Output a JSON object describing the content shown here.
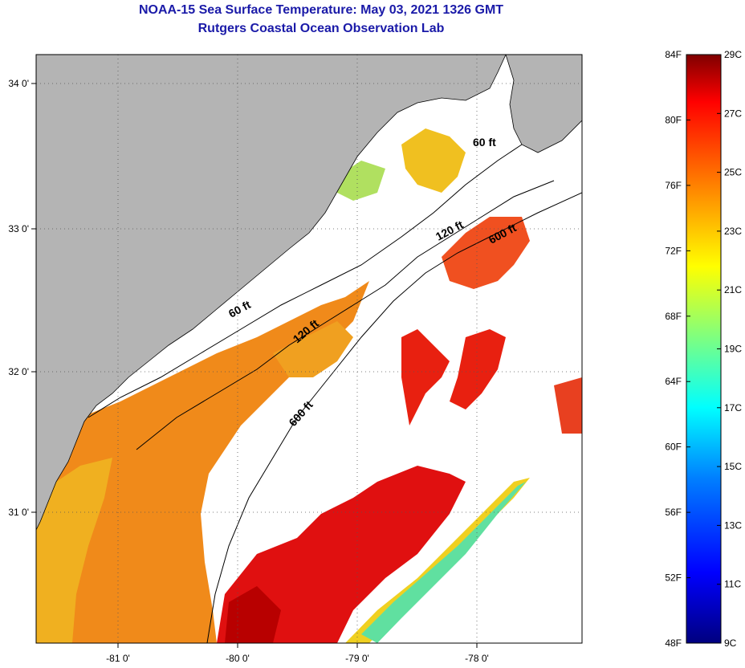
{
  "title": {
    "line1": "NOAA-15 Sea Surface Temperature:  May 03, 2021 1326 GMT",
    "line2": "Rutgers Coastal Ocean Observation Lab"
  },
  "colors": {
    "title": "#1a1aa8",
    "land": "#b4b4b4",
    "cloud": "#ffffff"
  },
  "map": {
    "lat_ticks": [
      {
        "value": 34,
        "label": "34 0'"
      },
      {
        "value": 33,
        "label": "33 0'"
      },
      {
        "value": 32,
        "label": "32 0'"
      },
      {
        "value": 31,
        "label": "31 0'"
      }
    ],
    "lon_ticks": [
      {
        "value": -81,
        "label": "-81 0'"
      },
      {
        "value": -80,
        "label": "-80 0'"
      },
      {
        "value": -79,
        "label": "-79 0'"
      },
      {
        "value": -78,
        "label": "-78 0'"
      }
    ],
    "isobaths": [
      {
        "name": "60 ft",
        "labels": [
          "60 ft",
          "60 ft"
        ]
      },
      {
        "name": "120 ft",
        "labels": [
          "120 ft",
          "120 ft"
        ]
      },
      {
        "name": "600 ft",
        "labels": [
          "600 ft",
          "600 ft"
        ]
      }
    ]
  },
  "colorbar": {
    "fahrenheit": [
      "84F",
      "80F",
      "76F",
      "72F",
      "68F",
      "64F",
      "60F",
      "56F",
      "52F",
      "48F"
    ],
    "celsius": [
      "29C",
      "27C",
      "25C",
      "23C",
      "21C",
      "19C",
      "17C",
      "15C",
      "13C",
      "11C",
      "9C"
    ],
    "stops": [
      "#00007f",
      "#0000ff",
      "#007fff",
      "#00ffff",
      "#7fff7f",
      "#ffff00",
      "#ff7f00",
      "#ff0000",
      "#7f0000"
    ]
  }
}
